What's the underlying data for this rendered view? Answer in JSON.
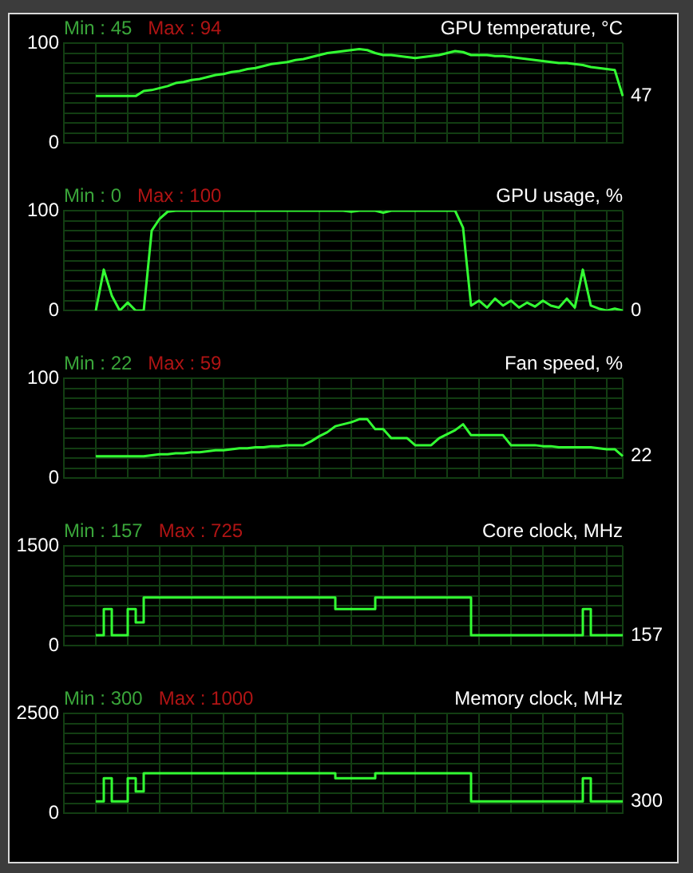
{
  "chart_data": [
    {
      "type": "line",
      "title": "GPU temperature, °C",
      "categories": [
        null,
        null,
        null,
        null,
        null,
        null,
        null,
        null,
        null,
        null,
        null,
        null,
        null,
        null,
        null,
        null,
        null,
        null,
        null,
        null,
        null,
        null,
        null,
        null,
        null,
        null,
        null,
        null,
        null,
        null,
        null,
        null,
        null,
        null,
        null,
        null,
        null,
        null,
        null,
        null,
        null,
        null,
        null,
        null,
        null,
        null,
        null,
        null,
        null,
        null,
        null,
        null,
        null,
        null,
        null,
        null,
        null,
        null,
        null,
        null,
        null,
        null,
        null,
        null,
        null,
        null,
        null,
        null,
        null,
        null,
        null
      ],
      "values": [
        null,
        null,
        null,
        null,
        47,
        47,
        47,
        47,
        47,
        47,
        52,
        53,
        55,
        57,
        60,
        61,
        63,
        64,
        66,
        68,
        69,
        71,
        72,
        74,
        75,
        77,
        79,
        80,
        81,
        83,
        84,
        86,
        88,
        90,
        91,
        92,
        93,
        94,
        93,
        90,
        88,
        88,
        87,
        86,
        85,
        86,
        87,
        88,
        90,
        92,
        91,
        88,
        88,
        88,
        87,
        87,
        86,
        85,
        84,
        83,
        82,
        81,
        80,
        80,
        79,
        78,
        76,
        75,
        74,
        73,
        47
      ],
      "color": "#33ff33",
      "ylim": [
        0,
        100
      ],
      "yticks": [
        0,
        {
          "value": 10,
          "label": null
        },
        {
          "value": 20,
          "label": null
        },
        {
          "value": 30,
          "label": null
        },
        {
          "value": 40,
          "label": null
        },
        {
          "value": 50,
          "label": null
        },
        {
          "value": 60,
          "label": null
        },
        {
          "value": 70,
          "label": null
        },
        {
          "value": 80,
          "label": null
        },
        {
          "value": 90,
          "label": null
        },
        100
      ],
      "grid": true,
      "legend": false,
      "marker": "none",
      "annotations": [
        "Min : 45",
        "Max : 94",
        "47"
      ]
    },
    {
      "type": "line",
      "title": "GPU usage, %",
      "categories": [
        null,
        null,
        null,
        null,
        null,
        null,
        null,
        null,
        null,
        null,
        null,
        null,
        null,
        null,
        null,
        null,
        null,
        null,
        null,
        null,
        null,
        null,
        null,
        null,
        null,
        null,
        null,
        null,
        null,
        null,
        null,
        null,
        null,
        null,
        null,
        null,
        null,
        null,
        null,
        null,
        null,
        null,
        null,
        null,
        null,
        null,
        null,
        null,
        null,
        null,
        null,
        null,
        null,
        null,
        null,
        null,
        null,
        null,
        null,
        null,
        null,
        null,
        null,
        null,
        null,
        null,
        null,
        null,
        null,
        null,
        null
      ],
      "values": [
        null,
        null,
        null,
        null,
        0,
        41,
        15,
        0,
        8,
        0,
        0,
        80,
        92,
        99,
        100,
        100,
        100,
        100,
        100,
        100,
        100,
        100,
        100,
        100,
        100,
        100,
        100,
        100,
        100,
        100,
        100,
        100,
        100,
        100,
        100,
        100,
        99,
        100,
        100,
        100,
        98,
        100,
        100,
        100,
        100,
        100,
        100,
        100,
        100,
        100,
        83,
        5,
        10,
        3,
        12,
        5,
        10,
        3,
        8,
        4,
        10,
        5,
        3,
        12,
        3,
        41,
        5,
        2,
        0,
        2,
        0
      ],
      "color": "#33ff33",
      "ylim": [
        0,
        100
      ],
      "yticks": [
        0,
        {
          "value": 10,
          "label": null
        },
        {
          "value": 20,
          "label": null
        },
        {
          "value": 30,
          "label": null
        },
        {
          "value": 40,
          "label": null
        },
        {
          "value": 50,
          "label": null
        },
        {
          "value": 60,
          "label": null
        },
        {
          "value": 70,
          "label": null
        },
        {
          "value": 80,
          "label": null
        },
        {
          "value": 90,
          "label": null
        },
        100
      ],
      "grid": true,
      "legend": false,
      "marker": "none",
      "annotations": [
        "Min : 0",
        "Max : 100",
        "0"
      ]
    },
    {
      "type": "line",
      "title": "Fan speed, %",
      "categories": [
        null,
        null,
        null,
        null,
        null,
        null,
        null,
        null,
        null,
        null,
        null,
        null,
        null,
        null,
        null,
        null,
        null,
        null,
        null,
        null,
        null,
        null,
        null,
        null,
        null,
        null,
        null,
        null,
        null,
        null,
        null,
        null,
        null,
        null,
        null,
        null,
        null,
        null,
        null,
        null,
        null,
        null,
        null,
        null,
        null,
        null,
        null,
        null,
        null,
        null,
        null,
        null,
        null,
        null,
        null,
        null,
        null,
        null,
        null,
        null,
        null,
        null,
        null,
        null,
        null,
        null,
        null,
        null,
        null,
        null,
        null
      ],
      "values": [
        null,
        null,
        null,
        null,
        22,
        22,
        22,
        22,
        22,
        22,
        22,
        23,
        24,
        24,
        25,
        25,
        26,
        26,
        27,
        28,
        28,
        29,
        30,
        30,
        31,
        31,
        32,
        32,
        33,
        33,
        33,
        37,
        42,
        46,
        52,
        54,
        56,
        59,
        59,
        49,
        49,
        40,
        40,
        40,
        33,
        33,
        33,
        40,
        44,
        48,
        54,
        43,
        43,
        43,
        43,
        43,
        33,
        33,
        33,
        33,
        32,
        32,
        31,
        31,
        31,
        31,
        31,
        30,
        29,
        29,
        22
      ],
      "color": "#33ff33",
      "ylim": [
        0,
        100
      ],
      "yticks": [
        0,
        {
          "value": 10,
          "label": null
        },
        {
          "value": 20,
          "label": null
        },
        {
          "value": 30,
          "label": null
        },
        {
          "value": 40,
          "label": null
        },
        {
          "value": 50,
          "label": null
        },
        {
          "value": 60,
          "label": null
        },
        {
          "value": 70,
          "label": null
        },
        {
          "value": 80,
          "label": null
        },
        {
          "value": 90,
          "label": null
        },
        100
      ],
      "grid": true,
      "legend": false,
      "marker": "none",
      "annotations": [
        "Min : 22",
        "Max : 59",
        "22"
      ]
    },
    {
      "type": "step",
      "title": "Core clock, MHz",
      "categories": [
        null,
        null,
        null,
        null,
        null,
        null,
        null,
        null,
        null,
        null,
        null,
        null,
        null,
        null,
        null,
        null,
        null,
        null,
        null,
        null,
        null,
        null,
        null,
        null,
        null,
        null,
        null,
        null,
        null,
        null,
        null,
        null,
        null,
        null,
        null,
        null,
        null,
        null,
        null,
        null,
        null,
        null,
        null,
        null,
        null,
        null,
        null,
        null,
        null,
        null,
        null,
        null,
        null,
        null,
        null,
        null,
        null,
        null,
        null,
        null,
        null,
        null,
        null,
        null,
        null,
        null,
        null,
        null,
        null,
        null,
        null
      ],
      "values": [
        null,
        null,
        null,
        null,
        157,
        550,
        157,
        157,
        550,
        350,
        725,
        725,
        725,
        725,
        725,
        725,
        725,
        725,
        725,
        725,
        725,
        725,
        725,
        725,
        725,
        725,
        725,
        725,
        725,
        725,
        725,
        725,
        725,
        725,
        550,
        550,
        550,
        550,
        550,
        725,
        725,
        725,
        725,
        725,
        725,
        725,
        725,
        725,
        725,
        725,
        725,
        157,
        157,
        157,
        157,
        157,
        157,
        157,
        157,
        157,
        157,
        157,
        157,
        157,
        157,
        550,
        157,
        157,
        157,
        157,
        157
      ],
      "color": "#33ff33",
      "ylim": [
        0,
        1500
      ],
      "yticks": [
        0,
        {
          "value": 150,
          "label": null
        },
        {
          "value": 300,
          "label": null
        },
        {
          "value": 450,
          "label": null
        },
        {
          "value": 600,
          "label": null
        },
        {
          "value": 750,
          "label": null
        },
        {
          "value": 900,
          "label": null
        },
        {
          "value": 1050,
          "label": null
        },
        {
          "value": 1200,
          "label": null
        },
        {
          "value": 1350,
          "label": null
        },
        1500
      ],
      "grid": true,
      "legend": false,
      "marker": "none",
      "annotations": [
        "Min : 157",
        "Max : 725",
        "157"
      ]
    },
    {
      "type": "step",
      "title": "Memory clock, MHz",
      "categories": [
        null,
        null,
        null,
        null,
        null,
        null,
        null,
        null,
        null,
        null,
        null,
        null,
        null,
        null,
        null,
        null,
        null,
        null,
        null,
        null,
        null,
        null,
        null,
        null,
        null,
        null,
        null,
        null,
        null,
        null,
        null,
        null,
        null,
        null,
        null,
        null,
        null,
        null,
        null,
        null,
        null,
        null,
        null,
        null,
        null,
        null,
        null,
        null,
        null,
        null,
        null,
        null,
        null,
        null,
        null,
        null,
        null,
        null,
        null,
        null,
        null,
        null,
        null,
        null,
        null,
        null,
        null,
        null,
        null,
        null,
        null
      ],
      "values": [
        null,
        null,
        null,
        null,
        300,
        880,
        300,
        300,
        880,
        550,
        1000,
        1000,
        1000,
        1000,
        1000,
        1000,
        1000,
        1000,
        1000,
        1000,
        1000,
        1000,
        1000,
        1000,
        1000,
        1000,
        1000,
        1000,
        1000,
        1000,
        1000,
        1000,
        1000,
        1000,
        880,
        880,
        880,
        880,
        880,
        1000,
        1000,
        1000,
        1000,
        1000,
        1000,
        1000,
        1000,
        1000,
        1000,
        1000,
        1000,
        300,
        300,
        300,
        300,
        300,
        300,
        300,
        300,
        300,
        300,
        300,
        300,
        300,
        300,
        880,
        300,
        300,
        300,
        300,
        300
      ],
      "color": "#33ff33",
      "ylim": [
        0,
        2500
      ],
      "yticks": [
        0,
        {
          "value": 250,
          "label": null
        },
        {
          "value": 500,
          "label": null
        },
        {
          "value": 750,
          "label": null
        },
        {
          "value": 1000,
          "label": null
        },
        {
          "value": 1250,
          "label": null
        },
        {
          "value": 1500,
          "label": null
        },
        {
          "value": 1750,
          "label": null
        },
        {
          "value": 2000,
          "label": null
        },
        {
          "value": 2250,
          "label": null
        },
        2500
      ],
      "grid": true,
      "legend": false,
      "marker": "none",
      "annotations": [
        "Min : 300",
        "Max : 1000",
        "300"
      ]
    }
  ]
}
